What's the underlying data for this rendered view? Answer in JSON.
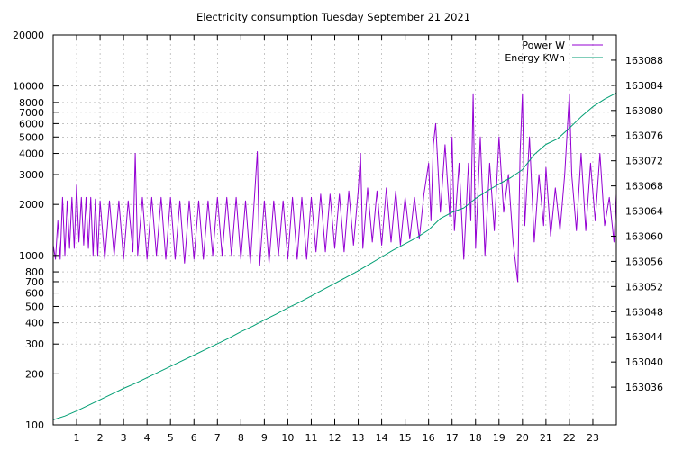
{
  "chart_data": {
    "type": "line",
    "title": "Electricity consumption Tuesday September 21 2021",
    "xlabel": "",
    "ylabel": "",
    "y2label": "",
    "x_range": [
      0,
      24
    ],
    "x_ticks": [
      1,
      2,
      3,
      4,
      5,
      6,
      7,
      8,
      9,
      10,
      11,
      12,
      13,
      14,
      15,
      16,
      17,
      18,
      19,
      20,
      21,
      22,
      23
    ],
    "y_scale": "log",
    "y_range": [
      100,
      20000
    ],
    "y_ticks": [
      100,
      200,
      300,
      400,
      500,
      600,
      700,
      800,
      1000,
      2000,
      3000,
      4000,
      5000,
      6000,
      7000,
      8000,
      10000,
      20000
    ],
    "y2_range": [
      163030,
      163092
    ],
    "y2_ticks": [
      163036,
      163040,
      163044,
      163048,
      163052,
      163056,
      163060,
      163064,
      163068,
      163072,
      163076,
      163080,
      163084,
      163088
    ],
    "grid": true,
    "legend_position": "top-right",
    "colors": {
      "power": "#9400d3",
      "energy": "#009e73"
    },
    "series": [
      {
        "name": "Power W",
        "axis": "left",
        "points": [
          [
            0.0,
            1150
          ],
          [
            0.1,
            950
          ],
          [
            0.2,
            1600
          ],
          [
            0.3,
            950
          ],
          [
            0.4,
            2200
          ],
          [
            0.5,
            1000
          ],
          [
            0.6,
            2100
          ],
          [
            0.7,
            1100
          ],
          [
            0.8,
            2200
          ],
          [
            0.9,
            1100
          ],
          [
            1.0,
            2600
          ],
          [
            1.1,
            1200
          ],
          [
            1.2,
            2200
          ],
          [
            1.3,
            1150
          ],
          [
            1.4,
            2200
          ],
          [
            1.5,
            1100
          ],
          [
            1.6,
            2200
          ],
          [
            1.7,
            1000
          ],
          [
            1.8,
            2150
          ],
          [
            1.9,
            1000
          ],
          [
            2.0,
            2100
          ],
          [
            2.2,
            950
          ],
          [
            2.4,
            2100
          ],
          [
            2.6,
            1000
          ],
          [
            2.8,
            2100
          ],
          [
            3.0,
            950
          ],
          [
            3.2,
            2100
          ],
          [
            3.4,
            1050
          ],
          [
            3.5,
            4000
          ],
          [
            3.6,
            1000
          ],
          [
            3.8,
            2200
          ],
          [
            4.0,
            950
          ],
          [
            4.2,
            2200
          ],
          [
            4.4,
            1000
          ],
          [
            4.6,
            2200
          ],
          [
            4.8,
            950
          ],
          [
            5.0,
            2200
          ],
          [
            5.2,
            950
          ],
          [
            5.4,
            2100
          ],
          [
            5.6,
            900
          ],
          [
            5.8,
            2100
          ],
          [
            6.0,
            950
          ],
          [
            6.2,
            2100
          ],
          [
            6.4,
            950
          ],
          [
            6.6,
            2100
          ],
          [
            6.8,
            1000
          ],
          [
            7.0,
            2200
          ],
          [
            7.2,
            1000
          ],
          [
            7.4,
            2200
          ],
          [
            7.6,
            1000
          ],
          [
            7.8,
            2200
          ],
          [
            8.0,
            950
          ],
          [
            8.2,
            2100
          ],
          [
            8.4,
            900
          ],
          [
            8.7,
            4100
          ],
          [
            8.8,
            870
          ],
          [
            9.0,
            2100
          ],
          [
            9.2,
            900
          ],
          [
            9.4,
            2100
          ],
          [
            9.6,
            1000
          ],
          [
            9.8,
            2100
          ],
          [
            10.0,
            950
          ],
          [
            10.2,
            2200
          ],
          [
            10.4,
            950
          ],
          [
            10.6,
            2200
          ],
          [
            10.8,
            950
          ],
          [
            11.0,
            2200
          ],
          [
            11.2,
            1050
          ],
          [
            11.4,
            2300
          ],
          [
            11.6,
            1050
          ],
          [
            11.8,
            2300
          ],
          [
            12.0,
            1100
          ],
          [
            12.2,
            2300
          ],
          [
            12.4,
            1050
          ],
          [
            12.6,
            2400
          ],
          [
            12.8,
            1150
          ],
          [
            13.0,
            2400
          ],
          [
            13.1,
            4000
          ],
          [
            13.2,
            1100
          ],
          [
            13.4,
            2500
          ],
          [
            13.6,
            1200
          ],
          [
            13.8,
            2400
          ],
          [
            14.0,
            1150
          ],
          [
            14.2,
            2500
          ],
          [
            14.4,
            1200
          ],
          [
            14.6,
            2400
          ],
          [
            14.8,
            1150
          ],
          [
            15.0,
            2200
          ],
          [
            15.2,
            1250
          ],
          [
            15.4,
            2200
          ],
          [
            15.6,
            1250
          ],
          [
            15.8,
            2300
          ],
          [
            16.0,
            3500
          ],
          [
            16.1,
            1600
          ],
          [
            16.2,
            4500
          ],
          [
            16.3,
            6000
          ],
          [
            16.5,
            1800
          ],
          [
            16.7,
            4500
          ],
          [
            16.9,
            1700
          ],
          [
            17.0,
            5000
          ],
          [
            17.1,
            1400
          ],
          [
            17.3,
            3500
          ],
          [
            17.5,
            950
          ],
          [
            17.7,
            3500
          ],
          [
            17.8,
            1600
          ],
          [
            17.9,
            9000
          ],
          [
            18.0,
            1100
          ],
          [
            18.2,
            5000
          ],
          [
            18.4,
            1000
          ],
          [
            18.6,
            3500
          ],
          [
            18.8,
            1400
          ],
          [
            19.0,
            5000
          ],
          [
            19.2,
            1800
          ],
          [
            19.4,
            3000
          ],
          [
            19.6,
            1200
          ],
          [
            19.8,
            700
          ],
          [
            19.9,
            4000
          ],
          [
            20.0,
            9000
          ],
          [
            20.1,
            1500
          ],
          [
            20.3,
            5000
          ],
          [
            20.5,
            1200
          ],
          [
            20.7,
            3000
          ],
          [
            20.9,
            1500
          ],
          [
            21.0,
            3300
          ],
          [
            21.2,
            1300
          ],
          [
            21.4,
            2500
          ],
          [
            21.6,
            1400
          ],
          [
            21.8,
            3000
          ],
          [
            22.0,
            9000
          ],
          [
            22.1,
            3000
          ],
          [
            22.3,
            1400
          ],
          [
            22.5,
            4000
          ],
          [
            22.7,
            1400
          ],
          [
            22.9,
            3500
          ],
          [
            23.1,
            1600
          ],
          [
            23.3,
            4000
          ],
          [
            23.5,
            1500
          ],
          [
            23.7,
            2200
          ],
          [
            23.9,
            1200
          ],
          [
            24.0,
            2300
          ]
        ]
      },
      {
        "name": "Energy KWh",
        "axis": "right",
        "points": [
          [
            0,
            163030.8
          ],
          [
            0.5,
            163031.4
          ],
          [
            1,
            163032.2
          ],
          [
            1.5,
            163033.1
          ],
          [
            2,
            163034.0
          ],
          [
            2.5,
            163034.9
          ],
          [
            3,
            163035.8
          ],
          [
            3.5,
            163036.6
          ],
          [
            4,
            163037.5
          ],
          [
            4.5,
            163038.4
          ],
          [
            5,
            163039.3
          ],
          [
            5.5,
            163040.2
          ],
          [
            6,
            163041.1
          ],
          [
            6.5,
            163042.0
          ],
          [
            7,
            163042.9
          ],
          [
            7.5,
            163043.8
          ],
          [
            8,
            163044.8
          ],
          [
            8.5,
            163045.7
          ],
          [
            9,
            163046.7
          ],
          [
            9.5,
            163047.6
          ],
          [
            10,
            163048.6
          ],
          [
            10.5,
            163049.5
          ],
          [
            11,
            163050.5
          ],
          [
            11.5,
            163051.5
          ],
          [
            12,
            163052.5
          ],
          [
            12.5,
            163053.5
          ],
          [
            13,
            163054.5
          ],
          [
            13.5,
            163055.6
          ],
          [
            14,
            163056.7
          ],
          [
            14.5,
            163057.8
          ],
          [
            15,
            163058.8
          ],
          [
            15.5,
            163059.8
          ],
          [
            16,
            163061.0
          ],
          [
            16.5,
            163062.8
          ],
          [
            17,
            163063.8
          ],
          [
            17.5,
            163064.5
          ],
          [
            18,
            163066.0
          ],
          [
            18.5,
            163067.2
          ],
          [
            19,
            163068.3
          ],
          [
            19.5,
            163069.3
          ],
          [
            20,
            163070.6
          ],
          [
            20.5,
            163073.0
          ],
          [
            21,
            163074.6
          ],
          [
            21.5,
            163075.5
          ],
          [
            22,
            163077.2
          ],
          [
            22.5,
            163079.0
          ],
          [
            23,
            163080.6
          ],
          [
            23.5,
            163081.8
          ],
          [
            24,
            163082.8
          ]
        ]
      }
    ]
  }
}
